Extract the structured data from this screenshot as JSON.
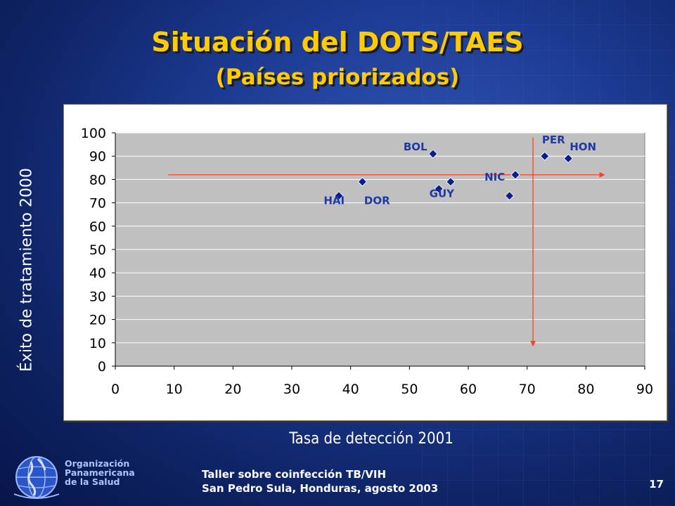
{
  "slide": {
    "title": "Situación del DOTS/TAES",
    "subtitle": "(Países priorizados)",
    "page_number": "17"
  },
  "footer": {
    "org_line1": "Organización",
    "org_line2": "Panamericana",
    "org_line3": "de la Salud",
    "event_line1": "Taller sobre coinfección TB/VIH",
    "event_line2": "San Pedro Sula, Honduras, agosto 2003"
  },
  "colors": {
    "title": "#ffcc00",
    "marker": "#0a1f8f",
    "point_label": "#1e3aa8",
    "reference_line": "#ff4020",
    "plot_bg": "#c0c0c0"
  },
  "chart_data": {
    "type": "scatter",
    "xlabel": "Tasa de detección 2001",
    "ylabel": "Éxito de tratamiento 2000",
    "xlim": [
      0,
      90
    ],
    "ylim": [
      0,
      100
    ],
    "xticks": [
      0,
      10,
      20,
      30,
      40,
      50,
      60,
      70,
      80,
      90
    ],
    "yticks": [
      0,
      10,
      20,
      30,
      40,
      50,
      60,
      70,
      80,
      90,
      100
    ],
    "grid": "horizontal",
    "points": [
      {
        "x": 38,
        "y": 73
      },
      {
        "x": 42,
        "y": 79
      },
      {
        "x": 54,
        "y": 91
      },
      {
        "x": 55,
        "y": 76
      },
      {
        "x": 57,
        "y": 79
      },
      {
        "x": 67,
        "y": 73
      },
      {
        "x": 68,
        "y": 82
      },
      {
        "x": 73,
        "y": 90
      },
      {
        "x": 77,
        "y": 89
      }
    ],
    "labels": [
      {
        "text": "HAI",
        "x": 37.2,
        "y": 69.5
      },
      {
        "text": "DOR",
        "x": 44.5,
        "y": 69.5
      },
      {
        "text": "BOL",
        "x": 51,
        "y": 92.5
      },
      {
        "text": "GUY",
        "x": 55.5,
        "y": 72.5
      },
      {
        "text": "NIC",
        "x": 64.5,
        "y": 79.5
      },
      {
        "text": "PER",
        "x": 74.5,
        "y": 95.5
      },
      {
        "text": "HON",
        "x": 79.5,
        "y": 92.5
      }
    ],
    "reference_lines": [
      {
        "orientation": "horizontal",
        "y": 82,
        "x_from": 9,
        "x_to": 83,
        "arrow": "end"
      },
      {
        "orientation": "vertical",
        "x": 71,
        "y_from": 98,
        "y_to": 9,
        "arrow": "end"
      }
    ]
  }
}
